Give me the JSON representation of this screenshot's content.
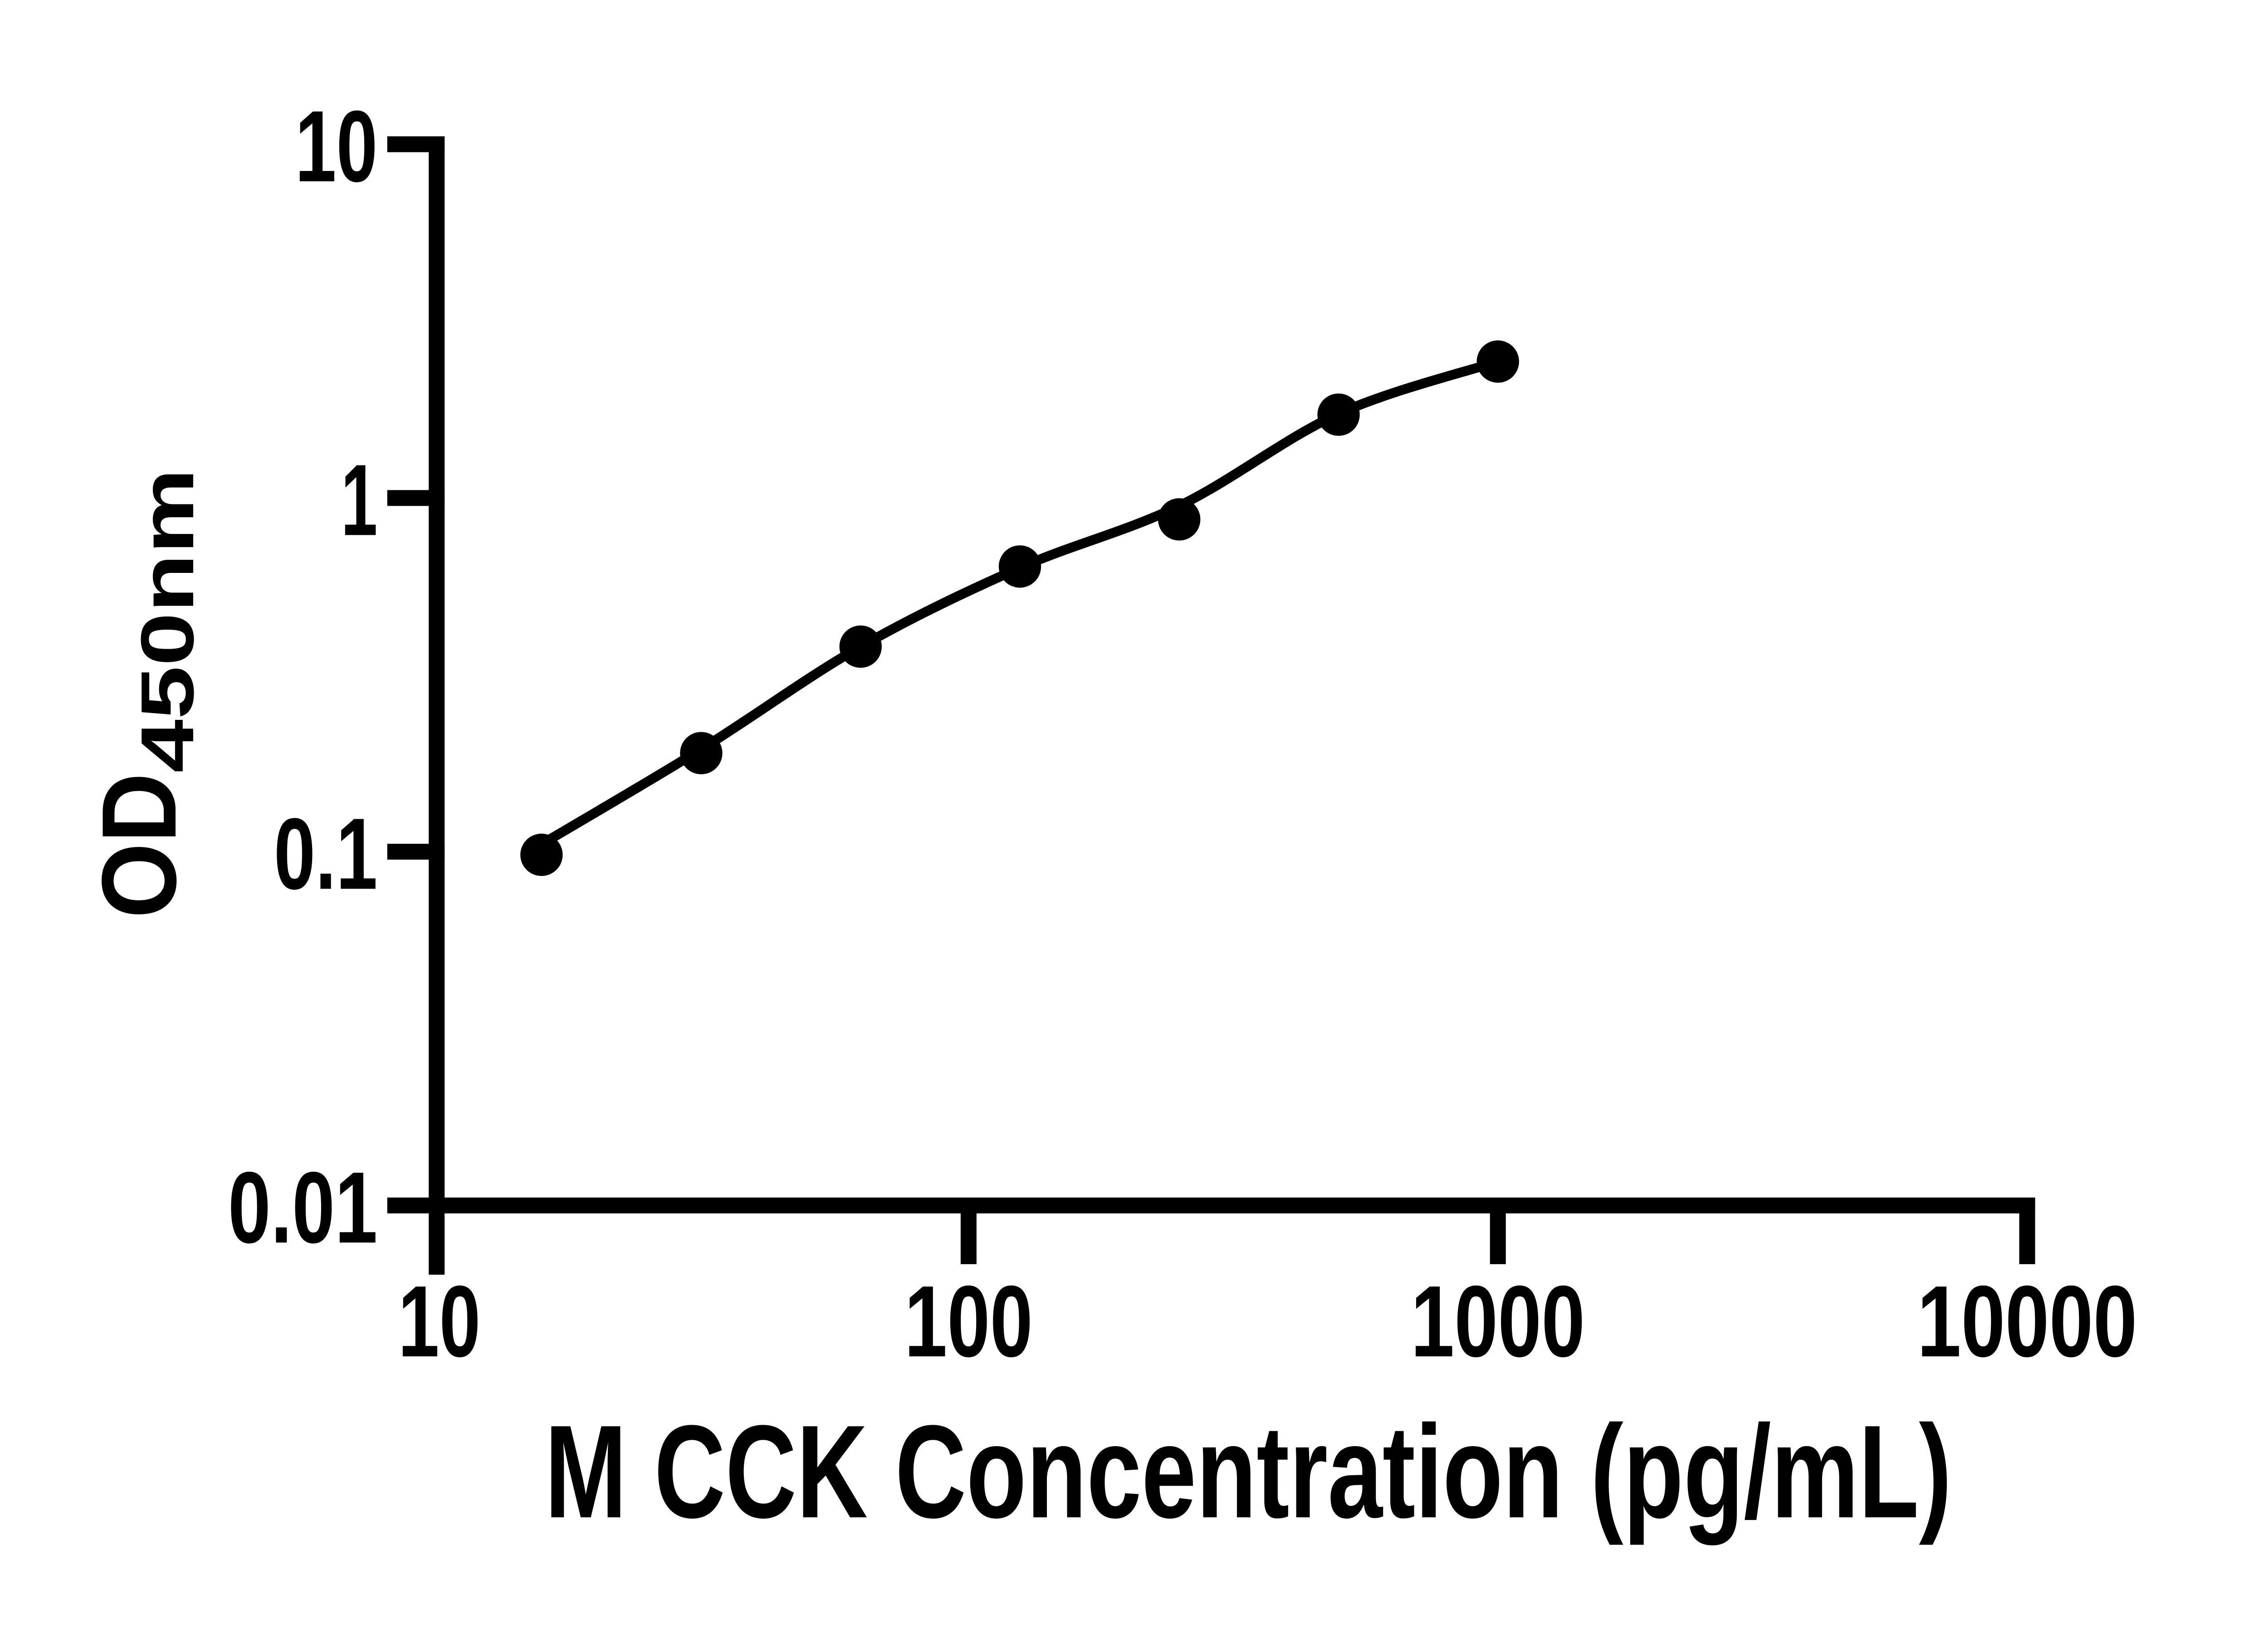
{
  "figure": {
    "background": "#ffffff"
  },
  "style": {
    "axis_color": "#000000",
    "text_color": "#000000",
    "marker_color": "#000000",
    "curve_color": "#000000",
    "background": "#ffffff"
  },
  "chart_data": {
    "type": "scatter",
    "title": "",
    "xlabel": "M CCK Concentration (pg/mL)",
    "ylabel": "OD",
    "ylabel_subscript": "450nm",
    "x_scale": "log10",
    "y_scale": "log10",
    "xlim": [
      10,
      10000
    ],
    "ylim": [
      0.01,
      10
    ],
    "grid": false,
    "legend": false,
    "x_ticks": [
      {
        "value": 10,
        "label": "10"
      },
      {
        "value": 100,
        "label": "100"
      },
      {
        "value": 1000,
        "label": "1000"
      },
      {
        "value": 10000,
        "label": "10000"
      }
    ],
    "y_ticks": [
      {
        "value": 10,
        "label": "10"
      },
      {
        "value": 1,
        "label": "1"
      },
      {
        "value": 0.1,
        "label": "0.1"
      },
      {
        "value": 0.01,
        "label": "0.01"
      }
    ],
    "series": [
      {
        "name": "standard-points",
        "marker": "filled-circle",
        "color": "#000000",
        "points": [
          {
            "x": 15.6,
            "y": 0.098
          },
          {
            "x": 31.25,
            "y": 0.19
          },
          {
            "x": 62.5,
            "y": 0.38
          },
          {
            "x": 125,
            "y": 0.64
          },
          {
            "x": 250,
            "y": 0.87
          },
          {
            "x": 500,
            "y": 1.72
          },
          {
            "x": 1000,
            "y": 2.43
          }
        ]
      }
    ],
    "fit_curve": {
      "name": "standard-curve-fit",
      "color": "#000000",
      "points": [
        {
          "x": 15.6,
          "y": 0.105
        },
        {
          "x": 31.25,
          "y": 0.195
        },
        {
          "x": 62.5,
          "y": 0.38
        },
        {
          "x": 125,
          "y": 0.635
        },
        {
          "x": 250,
          "y": 0.95
        },
        {
          "x": 500,
          "y": 1.73
        },
        {
          "x": 1000,
          "y": 2.43
        }
      ]
    }
  }
}
